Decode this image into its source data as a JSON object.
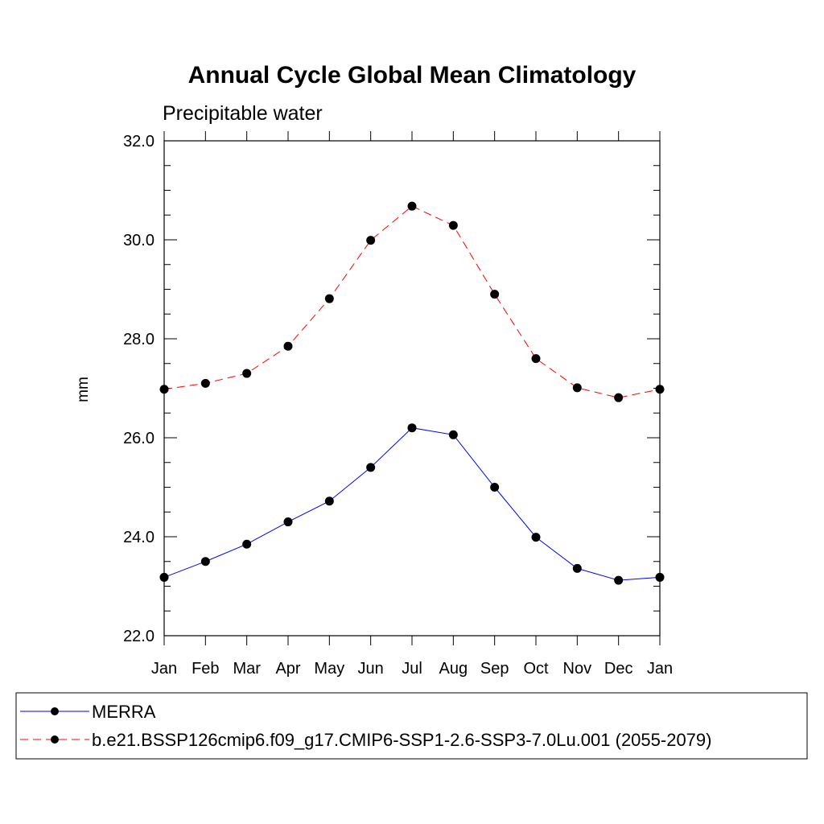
{
  "chart_data": {
    "type": "line",
    "title": "Annual Cycle Global Mean Climatology",
    "subtitle": "Precipitable water",
    "xlabel": "",
    "ylabel": "mm",
    "categories": [
      "Jan",
      "Feb",
      "Mar",
      "Apr",
      "May",
      "Jun",
      "Jul",
      "Aug",
      "Sep",
      "Oct",
      "Nov",
      "Dec",
      "Jan"
    ],
    "ylim": [
      22.0,
      32.0
    ],
    "yticks": [
      "22.0",
      "24.0",
      "26.0",
      "28.0",
      "30.0",
      "32.0"
    ],
    "grid": false,
    "legend_position": "bottom",
    "series": [
      {
        "name": "MERRA",
        "color": "#0000ff",
        "style": "solid",
        "values": [
          23.18,
          23.5,
          23.85,
          24.3,
          24.72,
          25.4,
          26.2,
          26.06,
          25.0,
          23.99,
          23.36,
          23.12,
          23.18
        ]
      },
      {
        "name": "b.e21.BSSP126cmip6.f09_g17.CMIP6-SSP1-2.6-SSP3-7.0Lu.001 (2055-2079)",
        "color": "#ff0000",
        "style": "dashed",
        "values": [
          26.98,
          27.1,
          27.3,
          27.85,
          28.81,
          29.99,
          30.68,
          30.29,
          28.9,
          27.6,
          27.01,
          26.81,
          26.98
        ]
      }
    ]
  }
}
